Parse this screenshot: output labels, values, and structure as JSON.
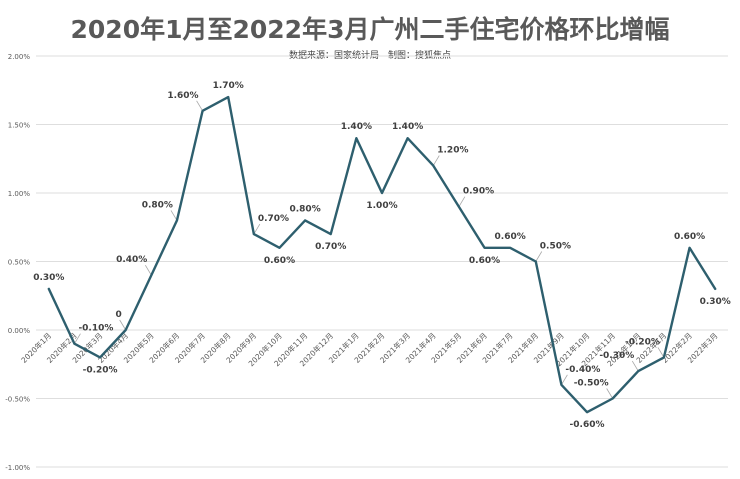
{
  "chart_data": {
    "type": "line",
    "title": "2020年1月至2022年3月广州二手住宅价格环比增幅",
    "subtitle": "数据来源：国家统计局　制图：搜狐焦点",
    "xlabel": "",
    "ylabel": "",
    "ylim": [
      -0.01,
      0.02
    ],
    "y_ticks": [
      -0.01,
      -0.005,
      0,
      0.005,
      0.01,
      0.015,
      0.02
    ],
    "y_tick_labels": [
      "-1.00%",
      "-0.50%",
      "0.00%",
      "0.50%",
      "1.00%",
      "1.50%",
      "2.00%"
    ],
    "grid": true,
    "legend": "none",
    "line_color": "#2e5f6e",
    "categories": [
      "2020年1月",
      "2020年2月",
      "2020年3月",
      "2020年4月",
      "2020年5月",
      "2020年6月",
      "2020年7月",
      "2020年8月",
      "2020年9月",
      "2020年10月",
      "2020年11月",
      "2020年12月",
      "2021年1月",
      "2021年2月",
      "2021年3月",
      "2021年4月",
      "2021年5月",
      "2021年6月",
      "2021年7月",
      "2021年8月",
      "2021年9月",
      "2021年10月",
      "2021年11月",
      "2021年12月",
      "2022年1月",
      "2022年2月",
      "2022年3月"
    ],
    "values": [
      0.003,
      -0.001,
      -0.002,
      0,
      0.004,
      0.008,
      0.016,
      0.017,
      0.007,
      0.006,
      0.008,
      0.007,
      0.014,
      0.01,
      0.014,
      0.012,
      0.009,
      0.006,
      0.006,
      0.005,
      -0.004,
      -0.006,
      -0.005,
      -0.003,
      -0.002,
      0.006,
      0.003
    ],
    "data_labels": [
      "0.30%",
      "-0.10%",
      "-0.20%",
      "0",
      "0.40%",
      "0.80%",
      "1.60%",
      "1.70%",
      "0.70%",
      "0.60%",
      "0.80%",
      "0.70%",
      "1.40%",
      "1.00%",
      "1.40%",
      "1.20%",
      "0.90%",
      "0.60%",
      "0.60%",
      "0.50%",
      "-0.40%",
      "-0.60%",
      "-0.50%",
      "-0.30%",
      "-0.20%",
      "0.60%",
      "0.30%"
    ]
  }
}
